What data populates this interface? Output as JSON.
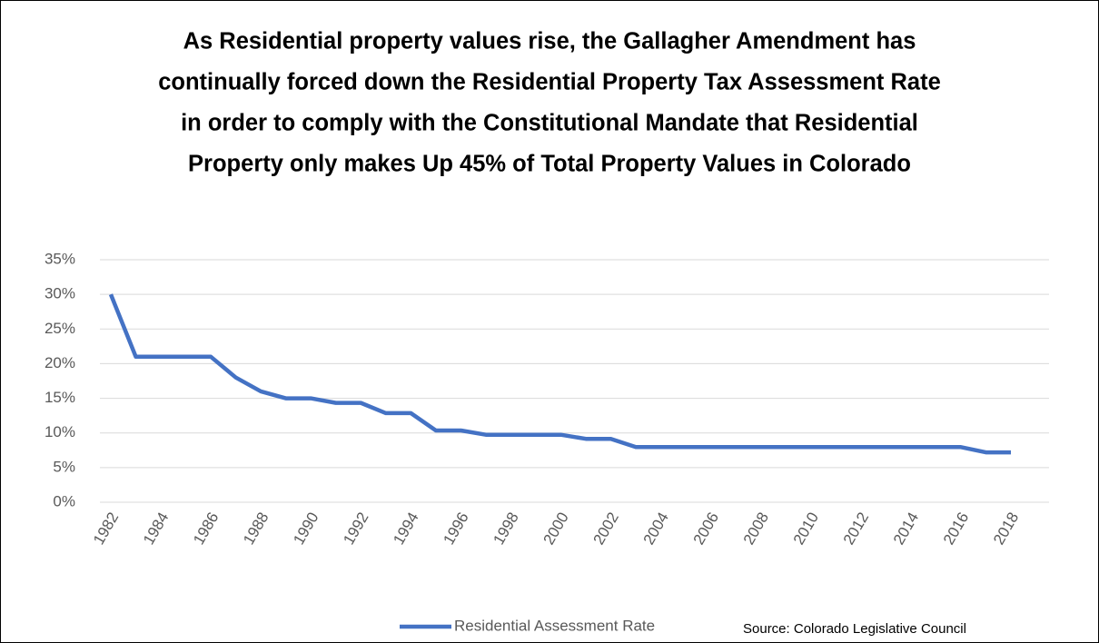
{
  "chart_data": {
    "type": "line",
    "title": [
      "As Residential property values rise, the Gallagher Amendment has",
      "continually forced down the Residential Property Tax Assessment Rate",
      "in order to comply with the Constitutional Mandate that Residential",
      "Property only makes Up 45% of Total Property Values in Colorado"
    ],
    "categories": [
      "1982",
      null,
      "1984",
      null,
      "1986",
      null,
      "1988",
      null,
      "1990",
      null,
      "1992",
      null,
      "1994",
      null,
      "1996",
      null,
      "1998",
      null,
      "2000",
      null,
      "2002",
      null,
      "2004",
      null,
      "2006",
      null,
      "2008",
      null,
      "2010",
      null,
      "2012",
      null,
      "2014",
      null,
      "2016",
      null,
      "2018"
    ],
    "series": [
      {
        "name": "Residential Assessment Rate",
        "color": "#4472c4",
        "values": [
          30,
          21,
          21,
          21,
          21,
          18,
          16,
          15,
          15,
          14.34,
          14.34,
          12.86,
          12.86,
          10.36,
          10.36,
          9.74,
          9.74,
          9.74,
          9.74,
          9.15,
          9.15,
          7.96,
          7.96,
          7.96,
          7.96,
          7.96,
          7.96,
          7.96,
          7.96,
          7.96,
          7.96,
          7.96,
          7.96,
          7.96,
          7.96,
          7.2,
          7.2
        ]
      }
    ],
    "ylim": [
      0,
      35
    ],
    "yticks": [
      {
        "value": 0,
        "label": "0%"
      },
      {
        "value": 5,
        "label": "5%"
      },
      {
        "value": 10,
        "label": "10%"
      },
      {
        "value": 15,
        "label": "15%"
      },
      {
        "value": 20,
        "label": "20%"
      },
      {
        "value": 25,
        "label": "25%"
      },
      {
        "value": 30,
        "label": "30%"
      },
      {
        "value": 35,
        "label": "35%"
      }
    ],
    "grid": true,
    "legend": "bottom",
    "source": "Source:   Colorado Legislative Council"
  }
}
